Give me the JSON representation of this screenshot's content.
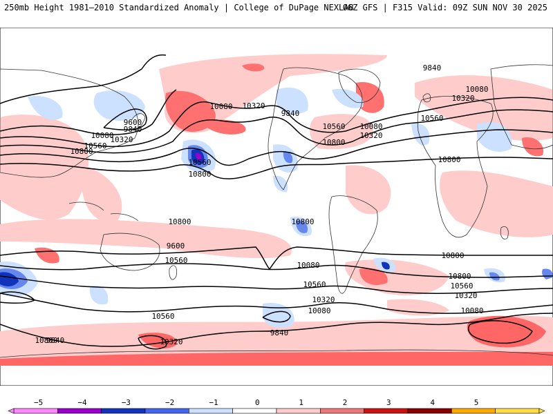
{
  "header": {
    "title": "250mb Height 1981–2010 Standardized Anomaly | College of DuPage NEXLAB",
    "run": "06Z GFS | F315 Valid: 09Z SUN NOV 30 2025"
  },
  "contour_labels": [
    "9840",
    "10080",
    "10320",
    "10560",
    "10800",
    "9600",
    "9840",
    "10080",
    "10320",
    "10560",
    "10800",
    "10080",
    "10320",
    "9840",
    "10560",
    "10800",
    "10080",
    "10320",
    "10560",
    "10800",
    "10800",
    "10560",
    "10800",
    "10800",
    "10800",
    "10560",
    "10320",
    "10080",
    "10560",
    "10320",
    "10080",
    "9840",
    "9600",
    "10800",
    "10560",
    "10320",
    "10080",
    "9840",
    "10080",
    "9840"
  ],
  "colorbar": {
    "ticks": [
      "−5",
      "−4",
      "−3",
      "−2",
      "−1",
      "0",
      "1",
      "2",
      "3",
      "4",
      "5"
    ],
    "colors": [
      "#ff88ff",
      "#9900cc",
      "#1133bb",
      "#4466ee",
      "#cce0ff",
      "#ffffff",
      "#ffcccc",
      "#ee7777",
      "#cc1111",
      "#880000",
      "#ffaa00",
      "#ffdd44"
    ]
  },
  "colors": {
    "land_border": "#333333",
    "contour": "#000000",
    "strong_neg": "#1133bb",
    "mod_neg": "#6688ee",
    "weak_neg": "#cce0ff",
    "weak_pos": "#ffcccc",
    "mod_pos": "#ff6666",
    "extreme_neg": "#9900cc"
  }
}
